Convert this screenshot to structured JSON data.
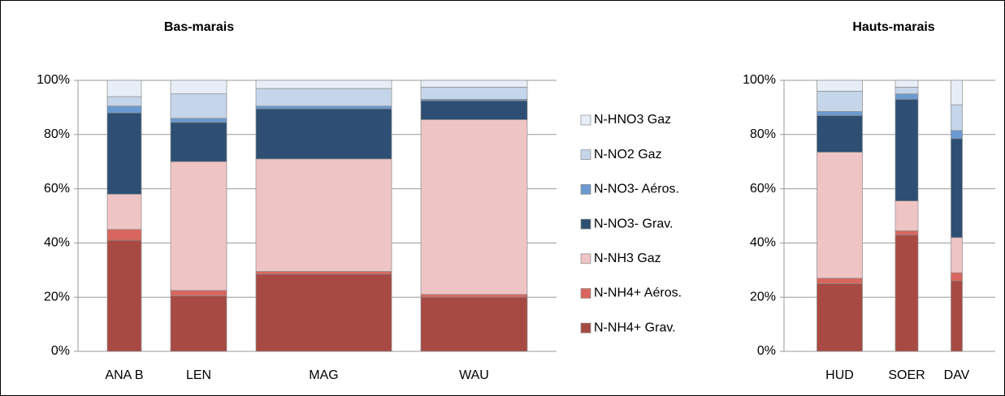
{
  "chart_data": [
    {
      "type": "stacked-bar",
      "title": "Bas-marais",
      "categories": [
        "ANA B",
        "LEN",
        "MAG",
        "WAU"
      ],
      "widths": [
        42,
        69,
        167,
        131
      ],
      "ylim": [
        0,
        100
      ],
      "yticks": [
        {
          "value": 0,
          "label": "0%"
        },
        {
          "value": 20,
          "label": "20%"
        },
        {
          "value": 40,
          "label": "40%"
        },
        {
          "value": 60,
          "label": "60%"
        },
        {
          "value": 80,
          "label": "80%"
        },
        {
          "value": 100,
          "label": "100%"
        }
      ],
      "grid": true,
      "legend": "right",
      "series": [
        {
          "name": "N-NH4+ Grav.",
          "color": "#a84a44",
          "values": [
            41,
            20.5,
            28.5,
            20
          ]
        },
        {
          "name": "N-NH4+ Aéros.",
          "color": "#d9665e",
          "values": [
            4,
            2,
            1,
            1
          ]
        },
        {
          "name": "N-NH3 Gaz",
          "color": "#efc4c4",
          "values": [
            13,
            47.5,
            41.5,
            64.5
          ]
        },
        {
          "name": "N-NO3- Grav.",
          "color": "#2e4f73",
          "values": [
            30,
            14.5,
            18.5,
            7
          ]
        },
        {
          "name": "N-NO3- Aéros.",
          "color": "#6a9ad0",
          "values": [
            2.5,
            1.5,
            1,
            0.5
          ]
        },
        {
          "name": "N-NO2 Gaz",
          "color": "#c5d5ea",
          "values": [
            3.5,
            9,
            6.5,
            4.5
          ]
        },
        {
          "name": "N-HNO3 Gaz",
          "color": "#e8eef7",
          "values": [
            6,
            5,
            3,
            2.5
          ]
        }
      ]
    },
    {
      "type": "stacked-bar",
      "title": "Hauts-marais",
      "categories": [
        "HUD",
        "SOER",
        "DAV"
      ],
      "widths": [
        56,
        28,
        14
      ],
      "ylim": [
        0,
        100
      ],
      "yticks": [
        {
          "value": 0,
          "label": "0%"
        },
        {
          "value": 20,
          "label": "20%"
        },
        {
          "value": 40,
          "label": "40%"
        },
        {
          "value": 60,
          "label": "60%"
        },
        {
          "value": 80,
          "label": "80%"
        },
        {
          "value": 100,
          "label": "100%"
        }
      ],
      "grid": true,
      "series": [
        {
          "color": "#a84a44",
          "values": [
            25,
            43,
            26
          ]
        },
        {
          "color": "#d9665e",
          "values": [
            2,
            1.5,
            3
          ]
        },
        {
          "color": "#efc4c4",
          "values": [
            46.5,
            11,
            13
          ]
        },
        {
          "color": "#2e4f73",
          "values": [
            13.5,
            37.5,
            36.5
          ]
        },
        {
          "color": "#6a9ad0",
          "values": [
            1.5,
            2,
            3
          ]
        },
        {
          "color": "#c5d5ea",
          "values": [
            7.5,
            2.5,
            9.5
          ]
        },
        {
          "color": "#e8eef7",
          "values": [
            4,
            2.5,
            9
          ]
        }
      ]
    }
  ]
}
